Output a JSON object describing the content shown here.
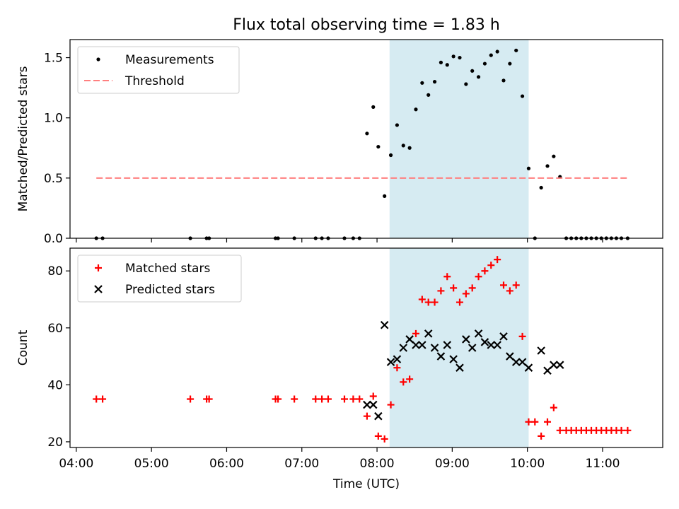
{
  "chart_data": {
    "title": "Flux total observing time = 1.83 h",
    "xlabel": "Time (UTC)",
    "x_ticks": [
      "04:00",
      "05:00",
      "06:00",
      "07:00",
      "08:00",
      "09:00",
      "10:00",
      "11:00"
    ],
    "x_range": [
      "03:55",
      "11:48"
    ],
    "highlight_span": [
      "08:10",
      "10:01"
    ],
    "highlight_color": "#add8e6",
    "panels": [
      {
        "type": "scatter",
        "ylabel": "Matched/Predicted stars",
        "ylim": [
          0,
          1.65
        ],
        "y_ticks": [
          "0.0",
          "0.5",
          "1.0",
          "1.5"
        ],
        "legend_position": "top-left",
        "grid": false,
        "series": [
          {
            "name": "Measurements",
            "marker": "dot",
            "color": "#000000",
            "points": [
              [
                "04:16",
                0
              ],
              [
                "04:21",
                0
              ],
              [
                "05:31",
                0
              ],
              [
                "05:44",
                0
              ],
              [
                "05:46",
                0
              ],
              [
                "06:39",
                0
              ],
              [
                "06:41",
                0
              ],
              [
                "06:54",
                0
              ],
              [
                "07:11",
                0
              ],
              [
                "07:16",
                0
              ],
              [
                "07:21",
                0
              ],
              [
                "07:34",
                0
              ],
              [
                "07:41",
                0
              ],
              [
                "07:46",
                0
              ],
              [
                "07:52",
                0.87
              ],
              [
                "07:57",
                1.09
              ],
              [
                "08:01",
                0.76
              ],
              [
                "08:06",
                0.35
              ],
              [
                "08:11",
                0.69
              ],
              [
                "08:16",
                0.94
              ],
              [
                "08:21",
                0.77
              ],
              [
                "08:26",
                0.75
              ],
              [
                "08:31",
                1.07
              ],
              [
                "08:36",
                1.29
              ],
              [
                "08:41",
                1.19
              ],
              [
                "08:46",
                1.3
              ],
              [
                "08:51",
                1.46
              ],
              [
                "08:56",
                1.44
              ],
              [
                "09:01",
                1.51
              ],
              [
                "09:06",
                1.5
              ],
              [
                "09:11",
                1.28
              ],
              [
                "09:16",
                1.39
              ],
              [
                "09:21",
                1.34
              ],
              [
                "09:26",
                1.45
              ],
              [
                "09:31",
                1.52
              ],
              [
                "09:36",
                1.55
              ],
              [
                "09:41",
                1.31
              ],
              [
                "09:46",
                1.45
              ],
              [
                "09:51",
                1.56
              ],
              [
                "09:56",
                1.18
              ],
              [
                "10:01",
                0.58
              ],
              [
                "10:06",
                0
              ],
              [
                "10:11",
                0.42
              ],
              [
                "10:16",
                0.6
              ],
              [
                "10:21",
                0.68
              ],
              [
                "10:26",
                0.51
              ],
              [
                "10:31",
                0
              ],
              [
                "10:35",
                0
              ],
              [
                "10:39",
                0
              ],
              [
                "10:43",
                0
              ],
              [
                "10:47",
                0
              ],
              [
                "10:51",
                0
              ],
              [
                "10:55",
                0
              ],
              [
                "10:59",
                0
              ],
              [
                "11:03",
                0
              ],
              [
                "11:07",
                0
              ],
              [
                "11:11",
                0
              ],
              [
                "11:15",
                0
              ],
              [
                "11:20",
                0
              ]
            ]
          },
          {
            "name": "Threshold",
            "marker": "dashed-line",
            "color": "#ff7f7f",
            "points": [
              [
                "04:16",
                0.5
              ],
              [
                "11:20",
                0.5
              ]
            ]
          }
        ]
      },
      {
        "type": "scatter",
        "ylabel": "Count",
        "ylim": [
          18,
          88
        ],
        "y_ticks": [
          "20",
          "40",
          "60",
          "80"
        ],
        "legend_position": "top-left",
        "grid": false,
        "series": [
          {
            "name": "Matched stars",
            "marker": "plus",
            "color": "#ff0000",
            "points": [
              [
                "04:16",
                35
              ],
              [
                "04:21",
                35
              ],
              [
                "05:31",
                35
              ],
              [
                "05:44",
                35
              ],
              [
                "05:46",
                35
              ],
              [
                "06:39",
                35
              ],
              [
                "06:41",
                35
              ],
              [
                "06:54",
                35
              ],
              [
                "07:11",
                35
              ],
              [
                "07:16",
                35
              ],
              [
                "07:21",
                35
              ],
              [
                "07:34",
                35
              ],
              [
                "07:41",
                35
              ],
              [
                "07:46",
                35
              ],
              [
                "07:52",
                29
              ],
              [
                "07:57",
                36
              ],
              [
                "08:01",
                22
              ],
              [
                "08:06",
                21
              ],
              [
                "08:11",
                33
              ],
              [
                "08:16",
                46
              ],
              [
                "08:21",
                41
              ],
              [
                "08:26",
                42
              ],
              [
                "08:31",
                58
              ],
              [
                "08:36",
                70
              ],
              [
                "08:41",
                69
              ],
              [
                "08:46",
                69
              ],
              [
                "08:51",
                73
              ],
              [
                "08:56",
                78
              ],
              [
                "09:01",
                74
              ],
              [
                "09:06",
                69
              ],
              [
                "09:11",
                72
              ],
              [
                "09:16",
                74
              ],
              [
                "09:21",
                78
              ],
              [
                "09:26",
                80
              ],
              [
                "09:31",
                82
              ],
              [
                "09:36",
                84
              ],
              [
                "09:41",
                75
              ],
              [
                "09:46",
                73
              ],
              [
                "09:51",
                75
              ],
              [
                "09:56",
                57
              ],
              [
                "10:01",
                27
              ],
              [
                "10:06",
                27
              ],
              [
                "10:11",
                22
              ],
              [
                "10:16",
                27
              ],
              [
                "10:21",
                32
              ],
              [
                "10:26",
                24
              ],
              [
                "10:31",
                24
              ],
              [
                "10:35",
                24
              ],
              [
                "10:39",
                24
              ],
              [
                "10:43",
                24
              ],
              [
                "10:47",
                24
              ],
              [
                "10:51",
                24
              ],
              [
                "10:55",
                24
              ],
              [
                "10:59",
                24
              ],
              [
                "11:03",
                24
              ],
              [
                "11:07",
                24
              ],
              [
                "11:11",
                24
              ],
              [
                "11:15",
                24
              ],
              [
                "11:20",
                24
              ]
            ]
          },
          {
            "name": "Predicted stars",
            "marker": "x",
            "color": "#000000",
            "points": [
              [
                "07:52",
                33
              ],
              [
                "07:57",
                33
              ],
              [
                "08:01",
                29
              ],
              [
                "08:06",
                61
              ],
              [
                "08:11",
                48
              ],
              [
                "08:16",
                49
              ],
              [
                "08:21",
                53
              ],
              [
                "08:26",
                56
              ],
              [
                "08:31",
                54
              ],
              [
                "08:36",
                54
              ],
              [
                "08:41",
                58
              ],
              [
                "08:46",
                53
              ],
              [
                "08:51",
                50
              ],
              [
                "08:56",
                54
              ],
              [
                "09:01",
                49
              ],
              [
                "09:06",
                46
              ],
              [
                "09:11",
                56
              ],
              [
                "09:16",
                53
              ],
              [
                "09:21",
                58
              ],
              [
                "09:26",
                55
              ],
              [
                "09:31",
                54
              ],
              [
                "09:36",
                54
              ],
              [
                "09:41",
                57
              ],
              [
                "09:46",
                50
              ],
              [
                "09:51",
                48
              ],
              [
                "09:56",
                48
              ],
              [
                "10:01",
                46
              ],
              [
                "10:11",
                52
              ],
              [
                "10:16",
                45
              ],
              [
                "10:21",
                47
              ],
              [
                "10:26",
                47
              ]
            ]
          }
        ]
      }
    ]
  }
}
